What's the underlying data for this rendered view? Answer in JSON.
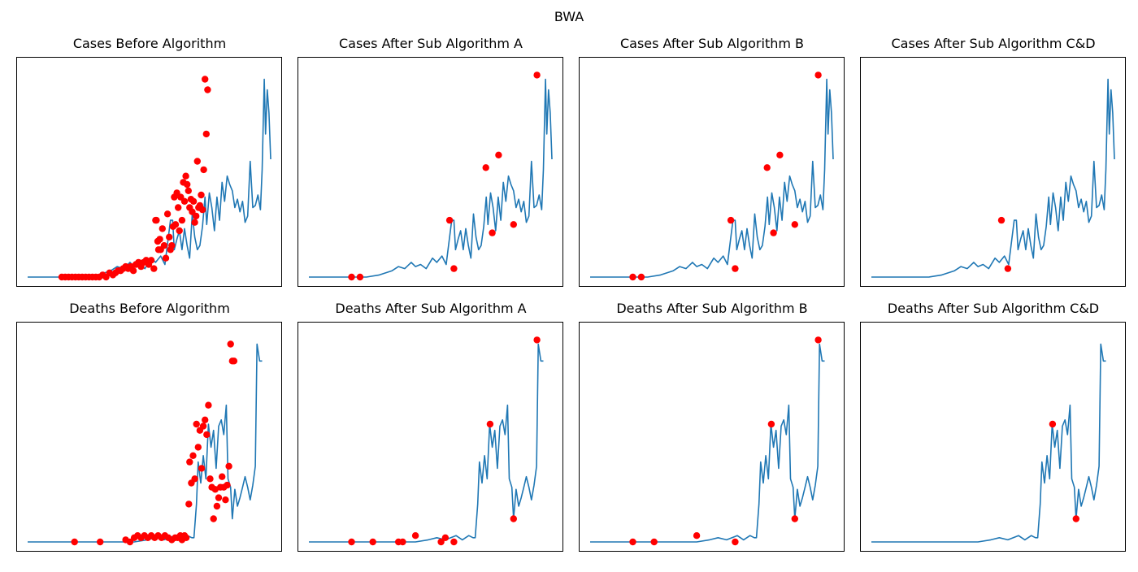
{
  "suptitle": "BWA",
  "colors": {
    "line": "#1f77b4",
    "marker": "#ff0000"
  },
  "chart_data": [
    {
      "type": "line",
      "title": "Cases Before Algorithm",
      "series": "cases",
      "markers": "cases_before",
      "grid": false
    },
    {
      "type": "line",
      "title": "Cases After Sub Algorithm A",
      "series": "cases",
      "markers": "cases_a",
      "grid": false
    },
    {
      "type": "line",
      "title": "Cases After Sub Algorithm B",
      "series": "cases",
      "markers": "cases_b",
      "grid": false
    },
    {
      "type": "line",
      "title": "Cases After Sub Algorithm C&D",
      "series": "cases",
      "markers": "cases_cd",
      "grid": false
    },
    {
      "type": "line",
      "title": "Deaths Before Algorithm",
      "series": "deaths",
      "markers": "deaths_before",
      "grid": false
    },
    {
      "type": "line",
      "title": "Deaths After Sub Algorithm A",
      "series": "deaths",
      "markers": "deaths_a",
      "grid": false
    },
    {
      "type": "line",
      "title": "Deaths After Sub Algorithm B",
      "series": "deaths",
      "markers": "deaths_b",
      "grid": false
    },
    {
      "type": "line",
      "title": "Deaths After Sub Algorithm C&D",
      "series": "deaths",
      "markers": "deaths_cd",
      "grid": false
    }
  ],
  "series": {
    "cases": [
      [
        0,
        0
      ],
      [
        135,
        0
      ],
      [
        165,
        0.01
      ],
      [
        195,
        0.03
      ],
      [
        210,
        0.05
      ],
      [
        225,
        0.04
      ],
      [
        240,
        0.07
      ],
      [
        250,
        0.05
      ],
      [
        262,
        0.06
      ],
      [
        275,
        0.04
      ],
      [
        290,
        0.09
      ],
      [
        300,
        0.07
      ],
      [
        312,
        0.1
      ],
      [
        322,
        0.06
      ],
      [
        335,
        0.27
      ],
      [
        340,
        0.27
      ],
      [
        344,
        0.13
      ],
      [
        350,
        0.18
      ],
      [
        356,
        0.22
      ],
      [
        362,
        0.13
      ],
      [
        368,
        0.23
      ],
      [
        374,
        0.15
      ],
      [
        380,
        0.09
      ],
      [
        386,
        0.3
      ],
      [
        392,
        0.19
      ],
      [
        398,
        0.13
      ],
      [
        404,
        0.15
      ],
      [
        410,
        0.24
      ],
      [
        416,
        0.38
      ],
      [
        420,
        0.25
      ],
      [
        426,
        0.4
      ],
      [
        432,
        0.33
      ],
      [
        438,
        0.22
      ],
      [
        444,
        0.38
      ],
      [
        450,
        0.27
      ],
      [
        456,
        0.45
      ],
      [
        462,
        0.36
      ],
      [
        468,
        0.48
      ],
      [
        474,
        0.44
      ],
      [
        480,
        0.41
      ],
      [
        486,
        0.33
      ],
      [
        492,
        0.37
      ],
      [
        498,
        0.31
      ],
      [
        504,
        0.36
      ],
      [
        510,
        0.26
      ],
      [
        516,
        0.29
      ],
      [
        522,
        0.55
      ],
      [
        528,
        0.33
      ],
      [
        534,
        0.34
      ],
      [
        540,
        0.39
      ],
      [
        546,
        0.32
      ],
      [
        550,
        0.51
      ],
      [
        555,
        0.94
      ],
      [
        558,
        0.68
      ],
      [
        562,
        0.89
      ],
      [
        566,
        0.78
      ],
      [
        570,
        0.56
      ]
    ],
    "deaths": [
      [
        0,
        0
      ],
      [
        250,
        0
      ],
      [
        280,
        0.01
      ],
      [
        300,
        0.02
      ],
      [
        320,
        0.01
      ],
      [
        345,
        0.03
      ],
      [
        360,
        0.01
      ],
      [
        375,
        0.03
      ],
      [
        385,
        0.02
      ],
      [
        390,
        0.02
      ],
      [
        396,
        0.18
      ],
      [
        400,
        0.38
      ],
      [
        406,
        0.28
      ],
      [
        412,
        0.41
      ],
      [
        418,
        0.3
      ],
      [
        424,
        0.56
      ],
      [
        430,
        0.45
      ],
      [
        436,
        0.53
      ],
      [
        442,
        0.35
      ],
      [
        448,
        0.55
      ],
      [
        454,
        0.58
      ],
      [
        460,
        0.51
      ],
      [
        466,
        0.65
      ],
      [
        470,
        0.3
      ],
      [
        476,
        0.26
      ],
      [
        480,
        0.11
      ],
      [
        486,
        0.25
      ],
      [
        492,
        0.17
      ],
      [
        498,
        0.21
      ],
      [
        504,
        0.26
      ],
      [
        510,
        0.31
      ],
      [
        516,
        0.26
      ],
      [
        522,
        0.2
      ],
      [
        528,
        0.27
      ],
      [
        534,
        0.36
      ],
      [
        538,
        0.94
      ],
      [
        544,
        0.86
      ],
      [
        550,
        0.86
      ]
    ],
    "cases_before": [
      [
        80,
        0
      ],
      [
        88,
        0
      ],
      [
        96,
        0
      ],
      [
        104,
        0
      ],
      [
        112,
        0
      ],
      [
        120,
        0
      ],
      [
        128,
        0
      ],
      [
        136,
        0
      ],
      [
        144,
        0
      ],
      [
        152,
        0
      ],
      [
        160,
        0
      ],
      [
        168,
        0
      ],
      [
        176,
        0.01
      ],
      [
        184,
        0
      ],
      [
        192,
        0.02
      ],
      [
        200,
        0.01
      ],
      [
        206,
        0.02
      ],
      [
        212,
        0.03
      ],
      [
        218,
        0.03
      ],
      [
        224,
        0.04
      ],
      [
        230,
        0.05
      ],
      [
        236,
        0.04
      ],
      [
        242,
        0.05
      ],
      [
        248,
        0.03
      ],
      [
        254,
        0.06
      ],
      [
        260,
        0.07
      ],
      [
        266,
        0.05
      ],
      [
        272,
        0.07
      ],
      [
        278,
        0.08
      ],
      [
        284,
        0.06
      ],
      [
        290,
        0.08
      ],
      [
        296,
        0.04
      ],
      [
        300,
        0.27
      ],
      [
        302,
        0.27
      ],
      [
        305,
        0.17
      ],
      [
        307,
        0.13
      ],
      [
        310,
        0.18
      ],
      [
        312,
        0.13
      ],
      [
        316,
        0.23
      ],
      [
        320,
        0.15
      ],
      [
        324,
        0.09
      ],
      [
        328,
        0.3
      ],
      [
        332,
        0.19
      ],
      [
        335,
        0.13
      ],
      [
        338,
        0.15
      ],
      [
        341,
        0.24
      ],
      [
        344,
        0.38
      ],
      [
        347,
        0.25
      ],
      [
        350,
        0.4
      ],
      [
        353,
        0.33
      ],
      [
        356,
        0.22
      ],
      [
        359,
        0.38
      ],
      [
        362,
        0.27
      ],
      [
        365,
        0.45
      ],
      [
        368,
        0.36
      ],
      [
        371,
        0.48
      ],
      [
        374,
        0.44
      ],
      [
        377,
        0.41
      ],
      [
        380,
        0.33
      ],
      [
        383,
        0.37
      ],
      [
        386,
        0.31
      ],
      [
        389,
        0.36
      ],
      [
        392,
        0.26
      ],
      [
        395,
        0.29
      ],
      [
        398,
        0.55
      ],
      [
        401,
        0.33
      ],
      [
        404,
        0.34
      ],
      [
        407,
        0.39
      ],
      [
        410,
        0.32
      ],
      [
        413,
        0.51
      ],
      [
        416,
        0.94
      ],
      [
        419,
        0.68
      ],
      [
        422,
        0.89
      ]
    ],
    "cases_a": [
      [
        100,
        0
      ],
      [
        120,
        0
      ],
      [
        330,
        0.27
      ],
      [
        340,
        0.04
      ],
      [
        415,
        0.52
      ],
      [
        430,
        0.21
      ],
      [
        445,
        0.58
      ],
      [
        480,
        0.25
      ],
      [
        535,
        0.96
      ]
    ],
    "cases_b": [
      [
        100,
        0
      ],
      [
        120,
        0
      ],
      [
        330,
        0.27
      ],
      [
        340,
        0.04
      ],
      [
        415,
        0.52
      ],
      [
        430,
        0.21
      ],
      [
        445,
        0.58
      ],
      [
        480,
        0.25
      ],
      [
        535,
        0.96
      ]
    ],
    "cases_cd": [
      [
        305,
        0.27
      ],
      [
        320,
        0.04
      ]
    ],
    "deaths_before": [
      [
        110,
        0
      ],
      [
        170,
        0
      ],
      [
        230,
        0.01
      ],
      [
        240,
        0
      ],
      [
        250,
        0.02
      ],
      [
        258,
        0.03
      ],
      [
        266,
        0.02
      ],
      [
        274,
        0.03
      ],
      [
        282,
        0.02
      ],
      [
        290,
        0.03
      ],
      [
        298,
        0.02
      ],
      [
        306,
        0.03
      ],
      [
        314,
        0.02
      ],
      [
        322,
        0.03
      ],
      [
        330,
        0.02
      ],
      [
        338,
        0.01
      ],
      [
        346,
        0.02
      ],
      [
        352,
        0.02
      ],
      [
        358,
        0.03
      ],
      [
        362,
        0.01
      ],
      [
        368,
        0.03
      ],
      [
        372,
        0.02
      ],
      [
        378,
        0.18
      ],
      [
        380,
        0.38
      ],
      [
        384,
        0.28
      ],
      [
        388,
        0.41
      ],
      [
        392,
        0.3
      ],
      [
        396,
        0.56
      ],
      [
        400,
        0.45
      ],
      [
        404,
        0.53
      ],
      [
        408,
        0.35
      ],
      [
        412,
        0.55
      ],
      [
        416,
        0.58
      ],
      [
        420,
        0.51
      ],
      [
        424,
        0.65
      ],
      [
        428,
        0.3
      ],
      [
        432,
        0.26
      ],
      [
        436,
        0.11
      ],
      [
        440,
        0.25
      ],
      [
        444,
        0.17
      ],
      [
        448,
        0.21
      ],
      [
        452,
        0.26
      ],
      [
        456,
        0.31
      ],
      [
        460,
        0.26
      ],
      [
        464,
        0.2
      ],
      [
        468,
        0.27
      ],
      [
        472,
        0.36
      ],
      [
        476,
        0.94
      ],
      [
        480,
        0.86
      ],
      [
        484,
        0.86
      ]
    ],
    "deaths_a": [
      [
        100,
        0
      ],
      [
        150,
        0
      ],
      [
        210,
        0
      ],
      [
        220,
        0
      ],
      [
        250,
        0.03
      ],
      [
        310,
        0
      ],
      [
        320,
        0.02
      ],
      [
        340,
        0
      ],
      [
        425,
        0.56
      ],
      [
        480,
        0.11
      ],
      [
        535,
        0.96
      ]
    ],
    "deaths_b": [
      [
        100,
        0
      ],
      [
        150,
        0
      ],
      [
        250,
        0.03
      ],
      [
        340,
        0
      ],
      [
        425,
        0.56
      ],
      [
        480,
        0.11
      ],
      [
        535,
        0.96
      ]
    ],
    "deaths_cd": [
      [
        425,
        0.56
      ],
      [
        480,
        0.11
      ]
    ]
  }
}
